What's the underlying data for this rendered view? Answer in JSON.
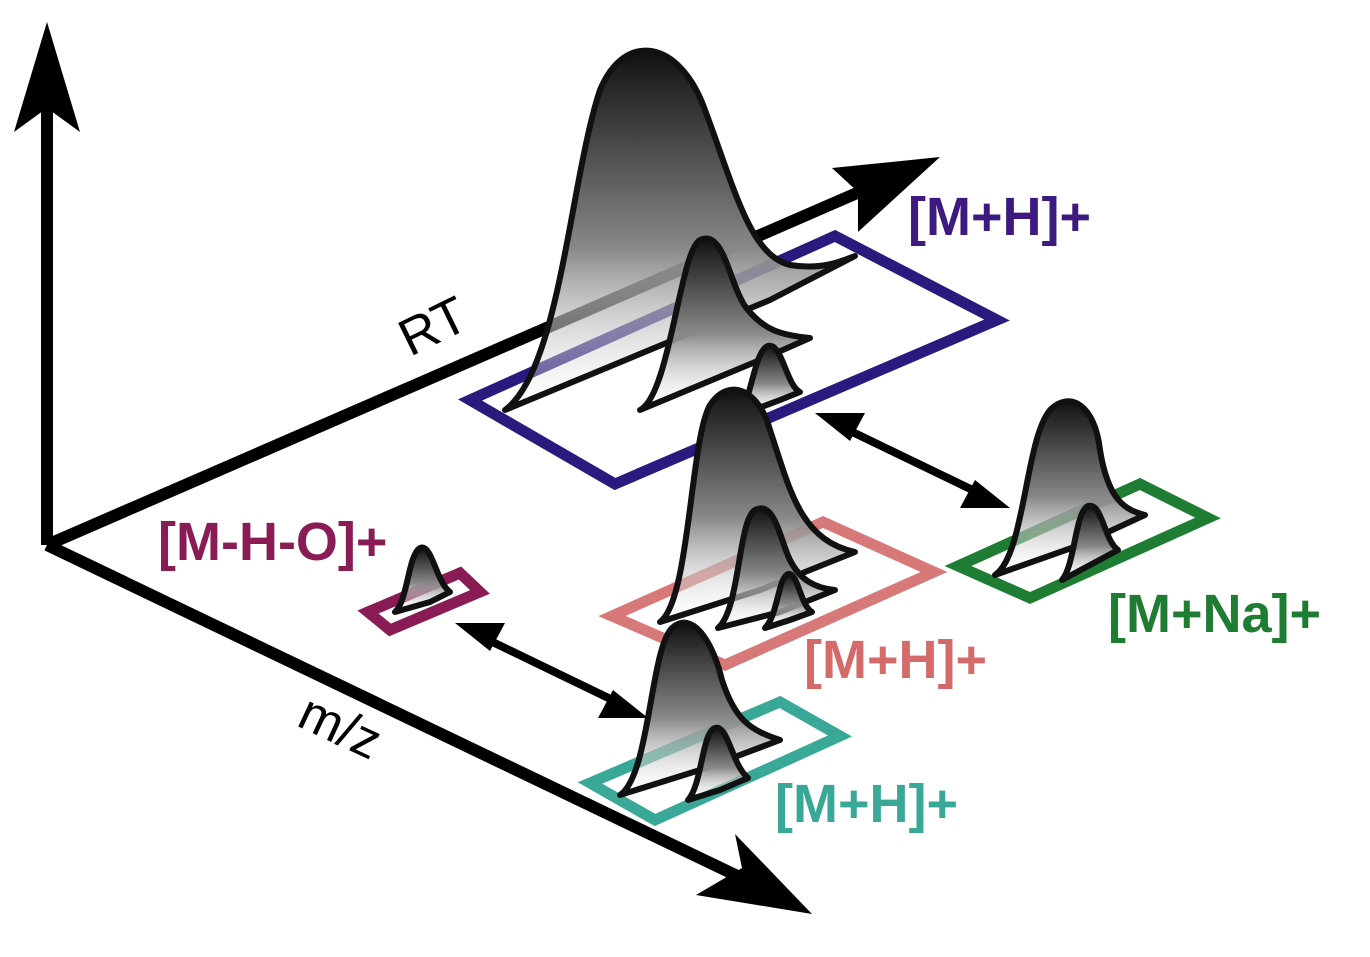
{
  "axes": {
    "rt_label": "RT",
    "mz_label": "m/z"
  },
  "adducts": [
    {
      "id": "mh_top",
      "label": "[M+H]+",
      "color": "#3d1a80"
    },
    {
      "id": "mh_mid",
      "label": "[M+H]+",
      "color": "#d46a6a"
    },
    {
      "id": "mh_bottom",
      "label": "[M+H]+",
      "color": "#3aa897"
    },
    {
      "id": "mna",
      "label": "[M+Na]+",
      "color": "#1e7d32"
    },
    {
      "id": "mho",
      "label": "[M-H-O]+",
      "color": "#8a1c55"
    }
  ],
  "colors": {
    "axis": "#000000",
    "top_box": "#2a1a7e",
    "mid_box": "#d46a6a",
    "bottom_box": "#3aa897",
    "na_box": "#1e7d32",
    "mho_box": "#8a1c55"
  }
}
